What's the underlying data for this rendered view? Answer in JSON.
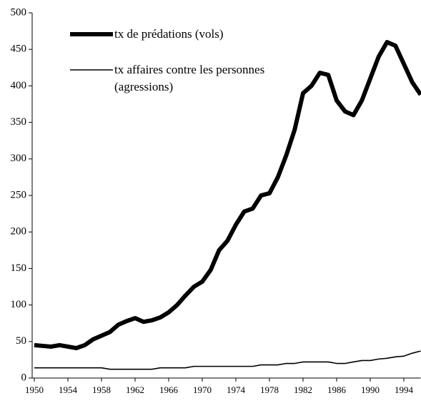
{
  "chart_data": {
    "type": "line",
    "x": [
      1950,
      1951,
      1952,
      1953,
      1954,
      1955,
      1956,
      1957,
      1958,
      1959,
      1960,
      1961,
      1962,
      1963,
      1964,
      1965,
      1966,
      1967,
      1968,
      1969,
      1970,
      1971,
      1972,
      1973,
      1974,
      1975,
      1976,
      1977,
      1978,
      1979,
      1980,
      1981,
      1982,
      1983,
      1984,
      1985,
      1986,
      1987,
      1988,
      1989,
      1990,
      1991,
      1992,
      1993,
      1994,
      1995,
      1996
    ],
    "series": [
      {
        "name": "tx de prédations (vols)",
        "color": "#000000",
        "width": 6,
        "values": [
          45,
          44,
          43,
          45,
          43,
          41,
          45,
          53,
          58,
          63,
          73,
          78,
          82,
          77,
          79,
          83,
          90,
          100,
          113,
          125,
          132,
          148,
          175,
          188,
          210,
          228,
          232,
          250,
          253,
          275,
          305,
          340,
          390,
          400,
          418,
          415,
          380,
          365,
          360,
          380,
          410,
          440,
          460,
          455,
          430,
          405,
          388
        ]
      },
      {
        "name": "tx affaires contre les personnes (agressions)",
        "color": "#000000",
        "width": 1.6,
        "values": [
          14,
          14,
          14,
          14,
          14,
          14,
          14,
          14,
          14,
          12,
          12,
          12,
          12,
          12,
          12,
          14,
          14,
          14,
          14,
          16,
          16,
          16,
          16,
          16,
          16,
          16,
          16,
          18,
          18,
          18,
          20,
          20,
          22,
          22,
          22,
          22,
          20,
          20,
          22,
          24,
          24,
          26,
          27,
          29,
          30,
          34,
          37
        ]
      }
    ],
    "xlim": [
      1950,
      1996
    ],
    "xticks": [
      1950,
      1954,
      1958,
      1962,
      1966,
      1970,
      1974,
      1978,
      1982,
      1986,
      1990,
      1994
    ],
    "ylim": [
      0,
      500
    ],
    "yticks": [
      0,
      50,
      100,
      150,
      200,
      250,
      300,
      350,
      400,
      450,
      500
    ],
    "legend": "top-left"
  }
}
